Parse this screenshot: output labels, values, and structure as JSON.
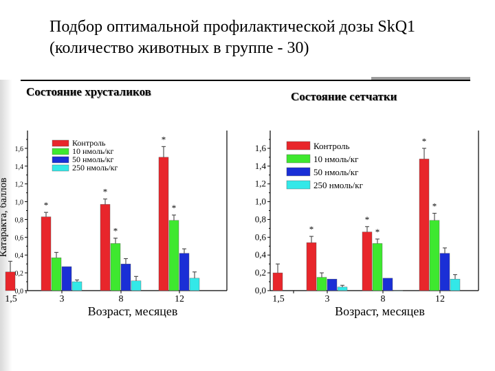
{
  "title": {
    "line1": "Подбор оптимальной  профилактической дозы SkQ1",
    "line2": "(количество животных в группе - 30)"
  },
  "colors": {
    "control": "#e8262b",
    "d10": "#3ee82f",
    "d50": "#1a2fd6",
    "d250": "#33e8e8"
  },
  "chart_data": [
    {
      "type": "bar",
      "title": "Состояние хрусталиков",
      "xlabel": "Возраст, месяцев",
      "ylabel": "Катаракта, баллов",
      "ylim": [
        0,
        1.8
      ],
      "yticks": [
        "0,0",
        "0,2",
        "0,4",
        "0,6",
        "0,8",
        "1,0",
        "1,2",
        "1,4",
        "1,6"
      ],
      "categories": [
        "1,5",
        "3",
        "8",
        "12"
      ],
      "legend_position": "top-left",
      "series": [
        {
          "name": "Контроль",
          "values": [
            0.21,
            0.83,
            0.97,
            1.5
          ],
          "errors": [
            0.12,
            0.05,
            0.06,
            0.12
          ],
          "stars": [
            "",
            "*",
            "*",
            "*"
          ]
        },
        {
          "name": "10 нмоль/кг",
          "values": [
            null,
            0.37,
            0.53,
            0.79
          ],
          "errors": [
            0,
            0.06,
            0.06,
            0.06
          ],
          "stars": [
            "",
            "",
            "*",
            "*"
          ]
        },
        {
          "name": "50 нмоль/кг",
          "values": [
            null,
            0.27,
            0.3,
            0.42
          ],
          "errors": [
            0,
            0.0,
            0.06,
            0.05
          ],
          "stars": [
            "",
            "",
            "",
            ""
          ]
        },
        {
          "name": "250 нмоль/кг",
          "values": [
            null,
            0.1,
            0.11,
            0.14
          ],
          "errors": [
            0,
            0.02,
            0.05,
            0.07
          ],
          "stars": [
            "",
            "",
            "",
            ""
          ]
        }
      ]
    },
    {
      "type": "bar",
      "title": "Состояние сетчатки",
      "xlabel": "Возраст, месяцев",
      "ylabel": "",
      "ylim": [
        0,
        1.8
      ],
      "yticks": [
        "0,0",
        "0,2",
        "0,4",
        "0,6",
        "0,8",
        "1,0",
        "1,2",
        "1,4",
        "1,6"
      ],
      "categories": [
        "1,5",
        "3",
        "8",
        "12"
      ],
      "legend_position": "top-left",
      "series": [
        {
          "name": "Контроль",
          "values": [
            0.2,
            0.54,
            0.66,
            1.48
          ],
          "errors": [
            0.1,
            0.07,
            0.06,
            0.12
          ],
          "stars": [
            "",
            "*",
            "*",
            "*"
          ]
        },
        {
          "name": "10 нмоль/кг",
          "values": [
            null,
            0.15,
            0.53,
            0.79
          ],
          "errors": [
            0,
            0.05,
            0.05,
            0.08
          ],
          "stars": [
            "",
            "",
            "*",
            "*"
          ]
        },
        {
          "name": "50 нмоль/кг",
          "values": [
            null,
            0.13,
            0.14,
            0.42
          ],
          "errors": [
            0,
            0.0,
            0.0,
            0.06
          ],
          "stars": [
            "",
            "",
            "",
            ""
          ]
        },
        {
          "name": "250 нмоль/кг",
          "values": [
            null,
            0.04,
            0.0,
            0.13
          ],
          "errors": [
            0,
            0.02,
            0.0,
            0.05
          ],
          "stars": [
            "",
            "",
            "",
            ""
          ]
        }
      ]
    }
  ]
}
